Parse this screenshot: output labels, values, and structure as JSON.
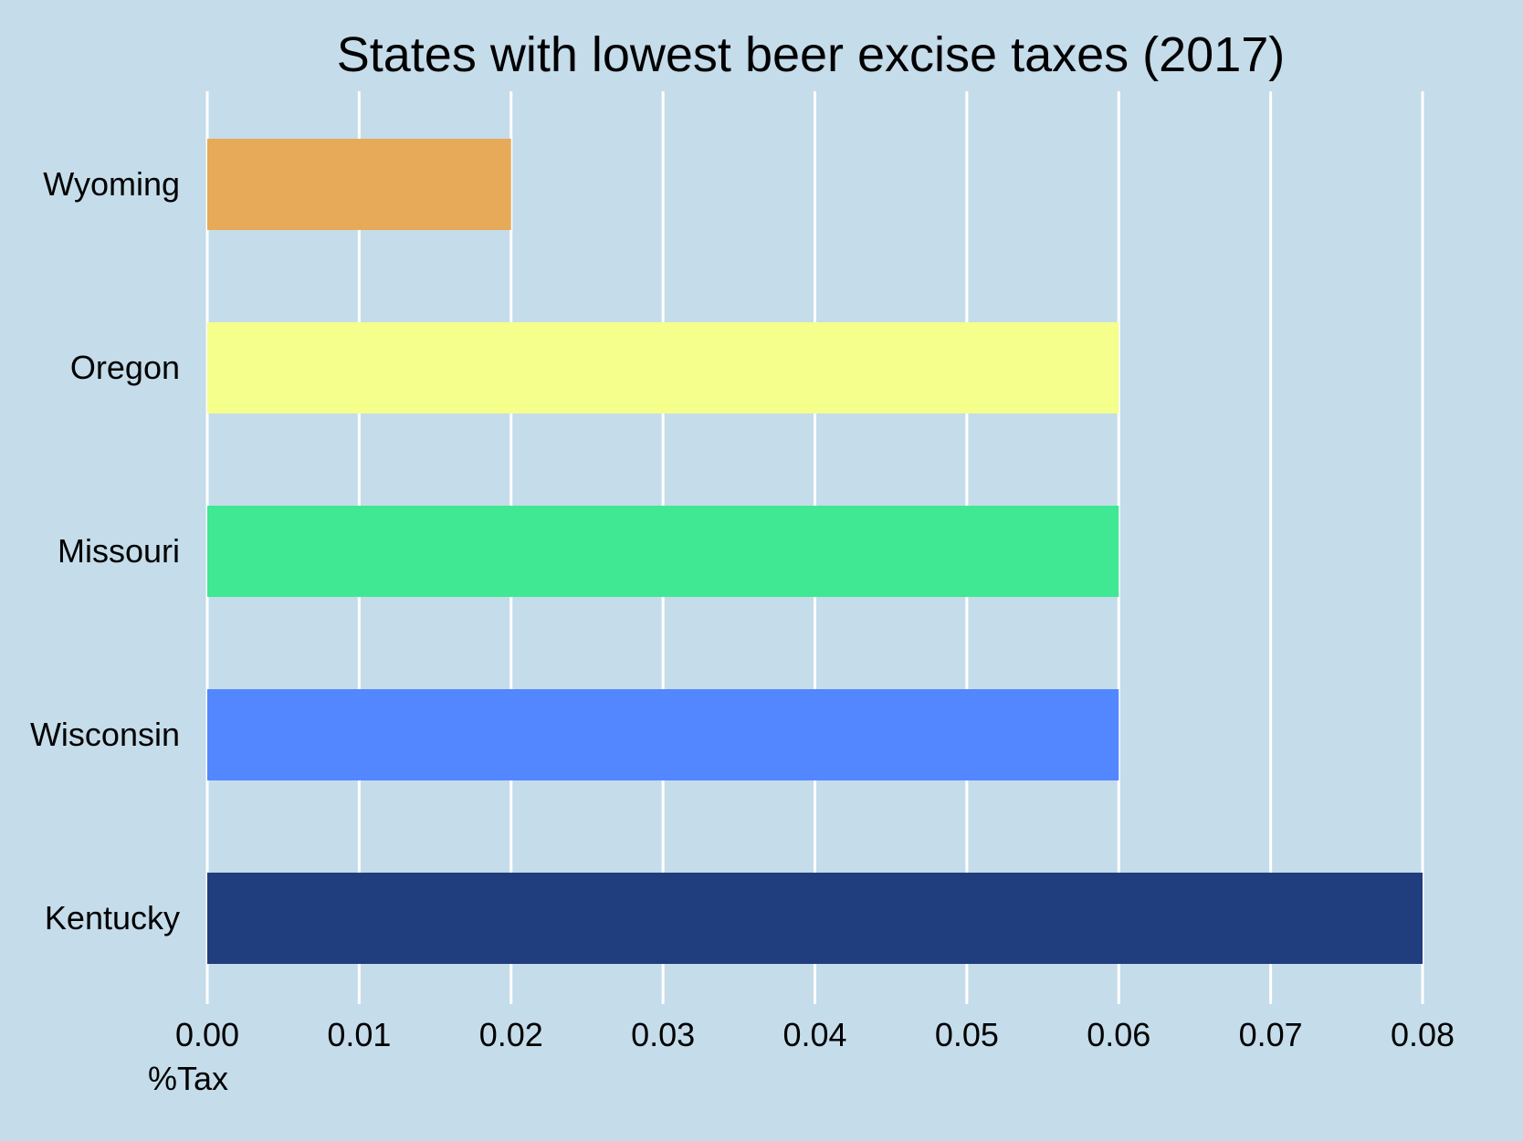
{
  "chart_data": {
    "type": "bar",
    "orientation": "horizontal",
    "title": "States with lowest beer excise taxes (2017)",
    "xlabel": "%Tax",
    "ylabel": "",
    "categories": [
      "Wyoming",
      "Oregon",
      "Missouri",
      "Wisconsin",
      "Kentucky"
    ],
    "values": [
      0.02,
      0.06,
      0.06,
      0.06,
      0.08
    ],
    "colors": [
      "#e6aa58",
      "#f5ff8c",
      "#40e894",
      "#5387ff",
      "#203d7d"
    ],
    "xlim": [
      0,
      0.08
    ],
    "xticks": [
      "0.00",
      "0.01",
      "0.02",
      "0.03",
      "0.04",
      "0.05",
      "0.06",
      "0.07",
      "0.08"
    ],
    "grid": "vertical",
    "legend": "none",
    "background_color": "#c5dcea",
    "gridline_color": "#ffffff"
  }
}
